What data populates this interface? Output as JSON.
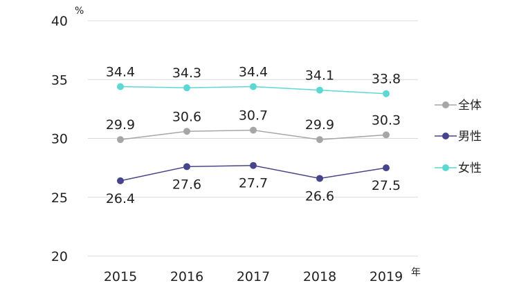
{
  "chart_data": {
    "type": "line",
    "y_unit": "%",
    "x_unit": "年",
    "categories": [
      "2015",
      "2016",
      "2017",
      "2018",
      "2019"
    ],
    "ylim": [
      20,
      40
    ],
    "yticks": [
      "20",
      "25",
      "30",
      "35",
      "40"
    ],
    "grid": true,
    "legend_position": "right",
    "series": [
      {
        "name": "全体",
        "color": "#a6a6a6",
        "values": [
          29.9,
          30.6,
          30.7,
          29.9,
          30.3
        ],
        "labels": [
          "29.9",
          "30.6",
          "30.7",
          "29.9",
          "30.3"
        ],
        "label_side": "above"
      },
      {
        "name": "男性",
        "color": "#46448a",
        "values": [
          26.4,
          27.6,
          27.7,
          26.6,
          27.5
        ],
        "labels": [
          "26.4",
          "27.6",
          "27.7",
          "26.6",
          "27.5"
        ],
        "label_side": "below"
      },
      {
        "name": "女性",
        "color": "#5cd8d4",
        "values": [
          34.4,
          34.3,
          34.4,
          34.1,
          33.8
        ],
        "labels": [
          "34.4",
          "34.3",
          "34.4",
          "34.1",
          "33.8"
        ],
        "label_side": "above"
      }
    ]
  }
}
